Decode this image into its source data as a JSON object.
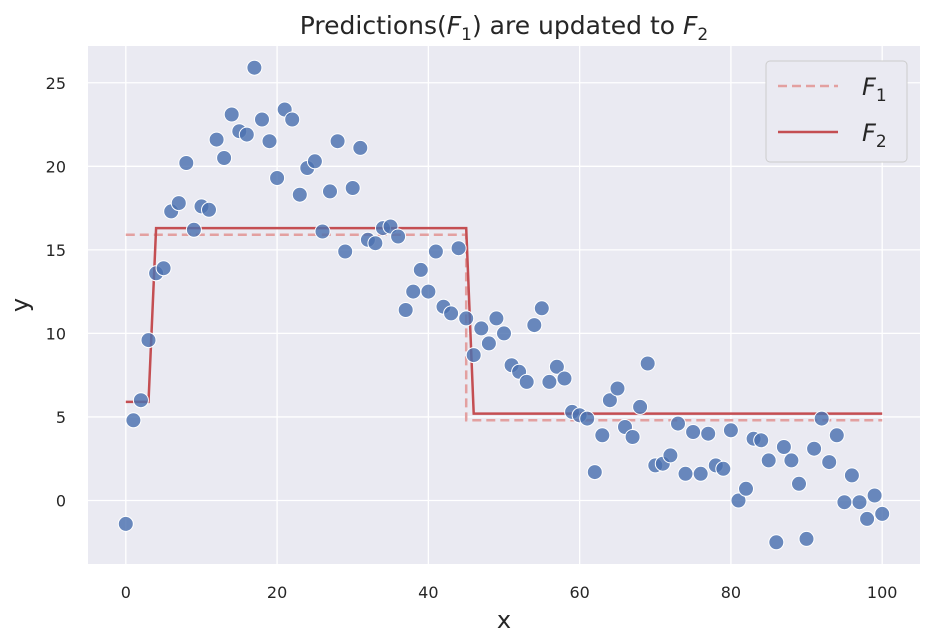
{
  "chart_data": {
    "type": "scatter",
    "title": {
      "prefix": "Predictions(",
      "f1_var": "F",
      "f1_sub": "1",
      "middle": ") are updated to ",
      "f2_var": "F",
      "f2_sub": "2"
    },
    "xlabel": "x",
    "ylabel": "y",
    "xlim": [
      -5,
      105
    ],
    "ylim": [
      -3.8,
      27.2
    ],
    "xticks": [
      0,
      20,
      40,
      60,
      80,
      100
    ],
    "yticks": [
      0,
      5,
      10,
      15,
      20,
      25
    ],
    "grid": true,
    "legend": {
      "placement": "top-right",
      "entries": [
        {
          "var": "F",
          "sub": "1",
          "style": "dashed"
        },
        {
          "var": "F",
          "sub": "2",
          "style": "solid"
        }
      ]
    },
    "colors": {
      "background": "#eaeaf2",
      "grid": "#ffffff",
      "points": "#4c72b0",
      "f1": "#e3a0a0",
      "f2": "#c44e52"
    },
    "scatter": {
      "x": [
        0,
        1,
        2,
        3,
        4,
        5,
        6,
        7,
        8,
        9,
        10,
        11,
        12,
        13,
        14,
        15,
        16,
        17,
        18,
        19,
        20,
        21,
        22,
        23,
        24,
        25,
        26,
        27,
        28,
        29,
        30,
        31,
        32,
        33,
        34,
        35,
        36,
        37,
        38,
        39,
        40,
        41,
        42,
        43,
        44,
        45,
        46,
        47,
        48,
        49,
        50,
        51,
        52,
        53,
        54,
        55,
        56,
        57,
        58,
        59,
        60,
        61,
        62,
        63,
        64,
        65,
        66,
        67,
        68,
        69,
        70,
        71,
        72,
        73,
        74,
        75,
        76,
        77,
        78,
        79,
        80,
        81,
        82,
        83,
        84,
        85,
        86,
        87,
        88,
        89,
        90,
        91,
        92,
        93,
        94,
        95,
        96,
        97,
        98,
        99,
        100
      ],
      "y": [
        -1.4,
        4.8,
        6.0,
        9.6,
        13.6,
        13.9,
        17.3,
        17.8,
        20.2,
        16.2,
        17.6,
        17.4,
        21.6,
        20.5,
        23.1,
        22.1,
        21.9,
        25.9,
        22.8,
        21.5,
        19.3,
        23.4,
        22.8,
        18.3,
        19.9,
        20.3,
        16.1,
        18.5,
        21.5,
        14.9,
        18.7,
        21.1,
        15.6,
        15.4,
        16.3,
        16.4,
        15.8,
        11.4,
        12.5,
        13.8,
        12.5,
        14.9,
        11.6,
        11.2,
        15.1,
        10.9,
        8.7,
        10.3,
        9.4,
        10.9,
        10.0,
        8.1,
        7.7,
        7.1,
        10.5,
        11.5,
        7.1,
        8.0,
        7.3,
        5.3,
        5.1,
        4.9,
        1.7,
        3.9,
        6.0,
        6.7,
        4.4,
        3.8,
        5.6,
        8.2,
        2.1,
        2.2,
        2.7,
        4.6,
        1.6,
        4.1,
        1.6,
        4.0,
        2.1,
        1.9,
        4.2,
        0.0,
        0.7,
        3.7,
        3.6,
        2.4,
        -2.5,
        3.2,
        2.4,
        1.0,
        -2.3,
        3.1,
        4.9,
        2.3,
        3.9,
        -0.1,
        1.5,
        -0.1,
        -1.1,
        0.3,
        -0.8
      ]
    },
    "series": [
      {
        "x": [
          0,
          3,
          3,
          45,
          45,
          100
        ],
        "y": [
          15.9,
          15.9,
          15.9,
          15.9,
          4.8,
          4.8
        ]
      },
      {
        "x": [
          0,
          3,
          4,
          45,
          46,
          100
        ],
        "y": [
          5.9,
          5.9,
          16.3,
          16.3,
          5.2,
          5.2
        ]
      }
    ]
  }
}
